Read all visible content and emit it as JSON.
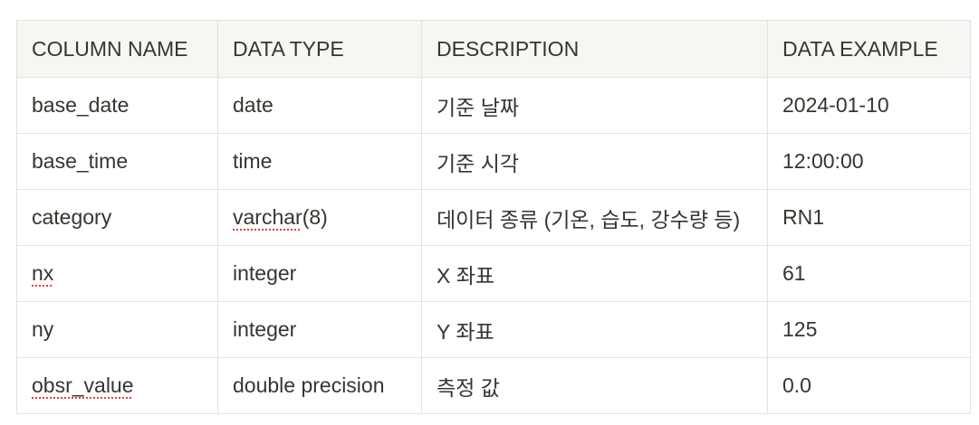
{
  "table": {
    "headers": [
      "COLUMN NAME",
      "DATA TYPE",
      "DESCRIPTION",
      "DATA EXAMPLE"
    ],
    "rows": [
      {
        "name": "base_date",
        "type": "date",
        "description": "기준 날짜",
        "example": "2024-01-10"
      },
      {
        "name": "base_time",
        "type": "time",
        "description": "기준 시각",
        "example": "12:00:00"
      },
      {
        "name": "category",
        "type": "varchar(8)",
        "type_flagged": "varchar",
        "type_rest": "(8)",
        "description": "데이터 종류 (기온, 습도, 강수량 등)",
        "example": "RN1"
      },
      {
        "name": "nx",
        "type": "integer",
        "description": "X 좌표",
        "example": "61"
      },
      {
        "name": "ny",
        "type": "integer",
        "description": "Y 좌표",
        "example": "125"
      },
      {
        "name": "obsr_value",
        "type": "double precision",
        "description": "측정 값",
        "example": "0.0"
      }
    ]
  },
  "colors": {
    "header_bg": "#f7f6f3",
    "border": "#e3e2e0",
    "text": "#37352f",
    "spellcheck_underline": "#e03e3e"
  }
}
